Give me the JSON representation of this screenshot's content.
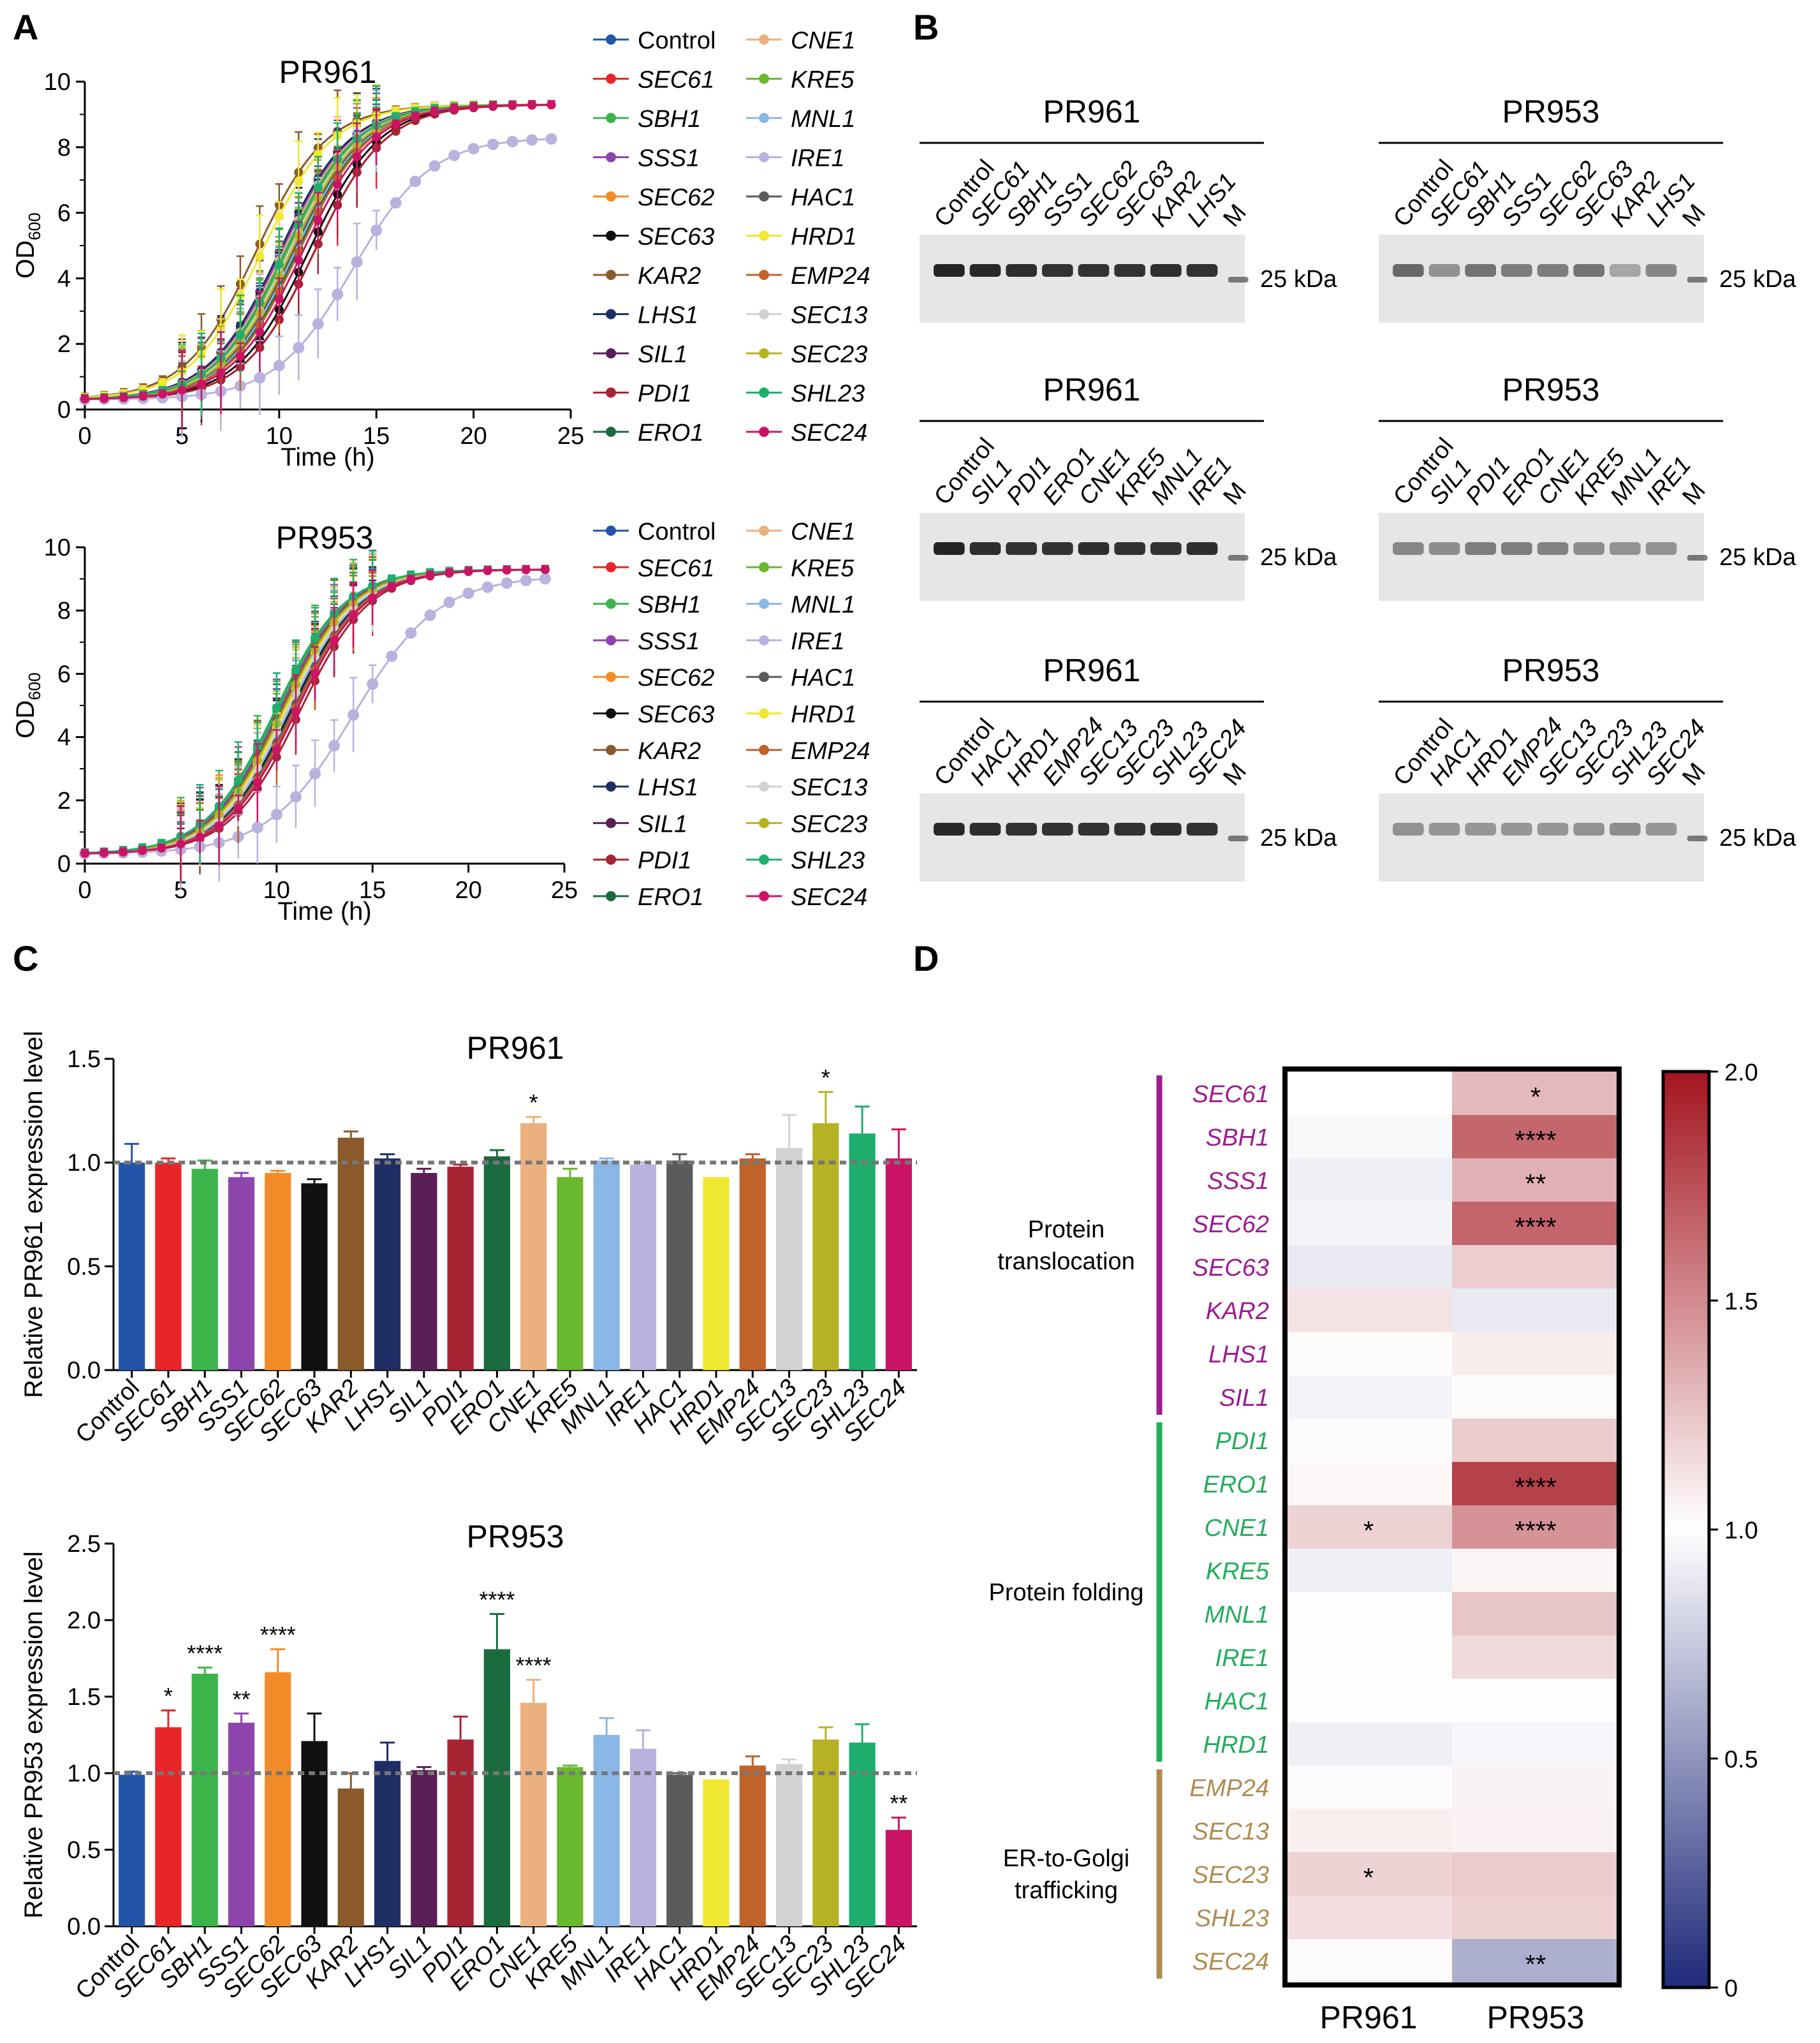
{
  "panel_labels": {
    "a": "A",
    "b": "B",
    "c": "C",
    "d": "D"
  },
  "gene_colors": {
    "Control": "#2255a8",
    "SEC61": "#e8262a",
    "SBH1": "#3cb44b",
    "SSS1": "#8e44ad",
    "SEC62": "#f28c28",
    "SEC63": "#111111",
    "KAR2": "#8b5a2b",
    "LHS1": "#1f2f66",
    "SIL1": "#5a1f57",
    "PDI1": "#a62434",
    "ERO1": "#1a6b3e",
    "CNE1": "#eab17e",
    "KRE5": "#6ab82d",
    "MNL1": "#8ab7e6",
    "IRE1": "#b9b2de",
    "HAC1": "#5b5b5b",
    "HRD1": "#f0e832",
    "EMP24": "#c0622a",
    "SEC13": "#d2d2d2",
    "SEC23": "#b7b224",
    "SHL23": "#1fae6c",
    "SEC24": "#cc1466"
  },
  "panel_b": {
    "blots": [
      {
        "strain": "PR961",
        "lanes": [
          "Control",
          "SEC61",
          "SBH1",
          "SSS1",
          "SEC62",
          "SEC63",
          "KAR2",
          "LHS1"
        ],
        "marker": "M",
        "size_label": "25 kDa",
        "intensities": [
          0.92,
          0.9,
          0.88,
          0.86,
          0.86,
          0.86,
          0.88,
          0.86
        ]
      },
      {
        "strain": "PR953",
        "lanes": [
          "Control",
          "SEC61",
          "SBH1",
          "SSS1",
          "SEC62",
          "SEC63",
          "KAR2",
          "LHS1"
        ],
        "marker": "M",
        "size_label": "25 kDa",
        "intensities": [
          0.6,
          0.4,
          0.55,
          0.5,
          0.5,
          0.55,
          0.3,
          0.45
        ]
      },
      {
        "strain": "PR961",
        "lanes": [
          "Control",
          "SIL1",
          "PDI1",
          "ERO1",
          "CNE1",
          "KRE5",
          "MNL1",
          "IRE1"
        ],
        "marker": "M",
        "size_label": "25 kDa",
        "intensities": [
          0.92,
          0.88,
          0.86,
          0.86,
          0.88,
          0.86,
          0.86,
          0.88
        ]
      },
      {
        "strain": "PR953",
        "lanes": [
          "Control",
          "SIL1",
          "PDI1",
          "ERO1",
          "CNE1",
          "KRE5",
          "MNL1",
          "IRE1"
        ],
        "marker": "M",
        "size_label": "25 kDa",
        "intensities": [
          0.45,
          0.42,
          0.5,
          0.5,
          0.48,
          0.42,
          0.4,
          0.4
        ]
      },
      {
        "strain": "PR961",
        "lanes": [
          "Control",
          "HAC1",
          "HRD1",
          "EMP24",
          "SEC13",
          "SEC23",
          "SHL23",
          "SEC24"
        ],
        "marker": "M",
        "size_label": "25 kDa",
        "intensities": [
          0.9,
          0.88,
          0.86,
          0.86,
          0.86,
          0.86,
          0.88,
          0.86
        ]
      },
      {
        "strain": "PR953",
        "lanes": [
          "Control",
          "HAC1",
          "HRD1",
          "EMP24",
          "SEC13",
          "SEC23",
          "SHL23",
          "SEC24"
        ],
        "marker": "M",
        "size_label": "25 kDa",
        "intensities": [
          0.4,
          0.38,
          0.38,
          0.38,
          0.38,
          0.4,
          0.42,
          0.38
        ]
      }
    ]
  },
  "chart_data": [
    {
      "id": "A-top",
      "type": "line",
      "title": "PR961",
      "xlabel": "Time (h)",
      "ylabel": "OD",
      "ylabel_sub": "600",
      "xlim": [
        0,
        25
      ],
      "ylim": [
        0,
        10
      ],
      "xticks": [
        0,
        5,
        10,
        15,
        20,
        25
      ],
      "yticks": [
        0,
        2,
        4,
        6,
        8,
        10
      ],
      "x": [
        0,
        1,
        2,
        3,
        4,
        5,
        6,
        7,
        8,
        9,
        10,
        11,
        12,
        13,
        14,
        15,
        16,
        17,
        18,
        19,
        20,
        21,
        22,
        23,
        24
      ],
      "series": [
        {
          "name": "Control",
          "k": 0.55,
          "t0": 10.4
        },
        {
          "name": "SEC61",
          "k": 0.55,
          "t0": 11.8
        },
        {
          "name": "SBH1",
          "k": 0.55,
          "t0": 10.4
        },
        {
          "name": "SSS1",
          "k": 0.55,
          "t0": 10.1
        },
        {
          "name": "SEC62",
          "k": 0.55,
          "t0": 10.6
        },
        {
          "name": "SEC63",
          "k": 0.55,
          "t0": 11.5
        },
        {
          "name": "KAR2",
          "k": 0.55,
          "t0": 8.8
        },
        {
          "name": "LHS1",
          "k": 0.55,
          "t0": 10.0
        },
        {
          "name": "SIL1",
          "k": 0.55,
          "t0": 10.6
        },
        {
          "name": "PDI1",
          "k": 0.55,
          "t0": 11.8
        },
        {
          "name": "ERO1",
          "k": 0.55,
          "t0": 10.9
        },
        {
          "name": "CNE1",
          "k": 0.55,
          "t0": 10.2
        },
        {
          "name": "KRE5",
          "k": 0.55,
          "t0": 10.4
        },
        {
          "name": "MNL1",
          "k": 0.55,
          "t0": 10.8
        },
        {
          "name": "IRE1",
          "k": 0.5,
          "t0": 13.8,
          "max": 8.3
        },
        {
          "name": "HAC1",
          "k": 0.55,
          "t0": 10.7
        },
        {
          "name": "HRD1",
          "k": 0.55,
          "t0": 9.1
        },
        {
          "name": "EMP24",
          "k": 0.55,
          "t0": 11.0
        },
        {
          "name": "SEC13",
          "k": 0.55,
          "t0": 10.5
        },
        {
          "name": "SEC23",
          "k": 0.55,
          "t0": 10.6
        },
        {
          "name": "SHL23",
          "k": 0.55,
          "t0": 10.3
        },
        {
          "name": "SEC24",
          "k": 0.55,
          "t0": 11.2
        }
      ]
    },
    {
      "id": "A-bottom",
      "type": "line",
      "title": "PR953",
      "xlabel": "Time (h)",
      "ylabel": "OD",
      "ylabel_sub": "600",
      "xlim": [
        0,
        25
      ],
      "ylim": [
        0,
        10
      ],
      "xticks": [
        0,
        5,
        10,
        15,
        20,
        25
      ],
      "yticks": [
        0,
        2,
        4,
        6,
        8,
        10
      ],
      "x": [
        0,
        1,
        2,
        3,
        4,
        5,
        6,
        7,
        8,
        9,
        10,
        11,
        12,
        13,
        14,
        15,
        16,
        17,
        18,
        19,
        20,
        21,
        22,
        23,
        24
      ],
      "series": [
        {
          "name": "Control",
          "k": 0.55,
          "t0": 10.4
        },
        {
          "name": "SEC61",
          "k": 0.55,
          "t0": 10.9
        },
        {
          "name": "SBH1",
          "k": 0.55,
          "t0": 10.0
        },
        {
          "name": "SSS1",
          "k": 0.55,
          "t0": 10.1
        },
        {
          "name": "SEC62",
          "k": 0.55,
          "t0": 10.3
        },
        {
          "name": "SEC63",
          "k": 0.55,
          "t0": 10.7
        },
        {
          "name": "KAR2",
          "k": 0.55,
          "t0": 10.2
        },
        {
          "name": "LHS1",
          "k": 0.55,
          "t0": 10.6
        },
        {
          "name": "SIL1",
          "k": 0.55,
          "t0": 10.5
        },
        {
          "name": "PDI1",
          "k": 0.55,
          "t0": 11.2
        },
        {
          "name": "ERO1",
          "k": 0.55,
          "t0": 10.3
        },
        {
          "name": "CNE1",
          "k": 0.55,
          "t0": 10.4
        },
        {
          "name": "KRE5",
          "k": 0.55,
          "t0": 10.5
        },
        {
          "name": "MNL1",
          "k": 0.55,
          "t0": 10.6
        },
        {
          "name": "IRE1",
          "k": 0.45,
          "t0": 14.0,
          "max": 9.1
        },
        {
          "name": "HAC1",
          "k": 0.55,
          "t0": 10.8
        },
        {
          "name": "HRD1",
          "k": 0.55,
          "t0": 10.4
        },
        {
          "name": "EMP24",
          "k": 0.55,
          "t0": 10.9
        },
        {
          "name": "SEC13",
          "k": 0.55,
          "t0": 10.5
        },
        {
          "name": "SEC23",
          "k": 0.55,
          "t0": 10.3
        },
        {
          "name": "SHL23",
          "k": 0.55,
          "t0": 9.9
        },
        {
          "name": "SEC24",
          "k": 0.55,
          "t0": 11.0
        }
      ]
    },
    {
      "id": "C-top",
      "type": "bar",
      "title": "PR961",
      "ylabel": "Relative PR961 expression level",
      "ylim": [
        0,
        1.5
      ],
      "yticks": [
        0.0,
        0.5,
        1.0,
        1.5
      ],
      "reference": 1.0,
      "categories": [
        "Control",
        "SEC61",
        "SBH1",
        "SSS1",
        "SEC62",
        "SEC63",
        "KAR2",
        "LHS1",
        "SIL1",
        "PDI1",
        "ERO1",
        "CNE1",
        "KRE5",
        "MNL1",
        "IRE1",
        "HAC1",
        "HRD1",
        "EMP24",
        "SEC13",
        "SEC23",
        "SHL23",
        "SEC24"
      ],
      "values": [
        1.0,
        1.0,
        0.97,
        0.93,
        0.95,
        0.9,
        1.12,
        1.02,
        0.95,
        0.98,
        1.03,
        1.19,
        0.93,
        1.01,
        0.99,
        1.01,
        0.93,
        1.02,
        1.07,
        1.19,
        1.14,
        1.02
      ],
      "errors": [
        0.09,
        0.02,
        0.04,
        0.02,
        0.01,
        0.02,
        0.03,
        0.02,
        0.02,
        0.01,
        0.03,
        0.03,
        0.04,
        0.01,
        0.01,
        0.03,
        0.0,
        0.02,
        0.16,
        0.15,
        0.13,
        0.14
      ],
      "significance": [
        "",
        "",
        "",
        "",
        "",
        "",
        "",
        "",
        "",
        "",
        "",
        "*",
        "",
        "",
        "",
        "",
        "",
        "",
        "",
        "*",
        "",
        ""
      ]
    },
    {
      "id": "C-bottom",
      "type": "bar",
      "title": "PR953",
      "ylabel": "Relative PR953 expression level",
      "ylim": [
        0,
        2.5
      ],
      "yticks": [
        0.0,
        0.5,
        1.0,
        1.5,
        2.0,
        2.5
      ],
      "reference": 1.0,
      "categories": [
        "Control",
        "SEC61",
        "SBH1",
        "SSS1",
        "SEC62",
        "SEC63",
        "KAR2",
        "LHS1",
        "SIL1",
        "PDI1",
        "ERO1",
        "CNE1",
        "KRE5",
        "MNL1",
        "IRE1",
        "HAC1",
        "HRD1",
        "EMP24",
        "SEC13",
        "SEC23",
        "SHL23",
        "SEC24"
      ],
      "values": [
        0.99,
        1.3,
        1.65,
        1.33,
        1.66,
        1.21,
        0.9,
        1.08,
        1.02,
        1.22,
        1.81,
        1.46,
        1.04,
        1.25,
        1.16,
        0.99,
        0.96,
        1.05,
        1.06,
        1.22,
        1.2,
        0.63
      ],
      "errors": [
        0.02,
        0.11,
        0.04,
        0.06,
        0.15,
        0.18,
        0.1,
        0.12,
        0.02,
        0.15,
        0.23,
        0.15,
        0.01,
        0.11,
        0.12,
        0.01,
        0.0,
        0.06,
        0.03,
        0.08,
        0.12,
        0.08
      ],
      "significance": [
        "",
        "*",
        "****",
        "**",
        "****",
        "",
        "",
        "",
        "",
        "",
        "****",
        "****",
        "",
        "",
        "",
        "",
        "",
        "",
        "",
        "",
        "",
        "**"
      ]
    },
    {
      "id": "D",
      "type": "heatmap",
      "columns": [
        "PR961",
        "PR953"
      ],
      "rows": [
        "SEC61",
        "SBH1",
        "SSS1",
        "SEC62",
        "SEC63",
        "KAR2",
        "LHS1",
        "SIL1",
        "PDI1",
        "ERO1",
        "CNE1",
        "KRE5",
        "MNL1",
        "IRE1",
        "HAC1",
        "HRD1",
        "EMP24",
        "SEC13",
        "SEC23",
        "SHL23",
        "SEC24"
      ],
      "row_colors": [
        "#9c1b8f",
        "#9c1b8f",
        "#9c1b8f",
        "#9c1b8f",
        "#9c1b8f",
        "#9c1b8f",
        "#9c1b8f",
        "#9c1b8f",
        "#22ad5b",
        "#22ad5b",
        "#22ad5b",
        "#22ad5b",
        "#22ad5b",
        "#22ad5b",
        "#22ad5b",
        "#22ad5b",
        "#b08a50",
        "#b08a50",
        "#b08a50",
        "#b08a50",
        "#b08a50"
      ],
      "values": [
        [
          1.0,
          1.3
        ],
        [
          0.97,
          1.65
        ],
        [
          0.93,
          1.33
        ],
        [
          0.95,
          1.66
        ],
        [
          0.9,
          1.21
        ],
        [
          1.12,
          0.9
        ],
        [
          1.02,
          1.08
        ],
        [
          0.95,
          1.02
        ],
        [
          0.98,
          1.22
        ],
        [
          1.03,
          1.81
        ],
        [
          1.19,
          1.46
        ],
        [
          0.93,
          1.04
        ],
        [
          1.01,
          1.25
        ],
        [
          0.99,
          1.16
        ],
        [
          1.01,
          0.99
        ],
        [
          0.93,
          0.96
        ],
        [
          1.02,
          1.05
        ],
        [
          1.07,
          1.06
        ],
        [
          1.19,
          1.22
        ],
        [
          1.14,
          1.2
        ],
        [
          1.02,
          0.63
        ]
      ],
      "significance": [
        [
          "",
          "*"
        ],
        [
          "",
          "****"
        ],
        [
          "",
          "**"
        ],
        [
          "",
          "****"
        ],
        [
          "",
          ""
        ],
        [
          "",
          ""
        ],
        [
          "",
          ""
        ],
        [
          "",
          ""
        ],
        [
          "",
          ""
        ],
        [
          "",
          "****"
        ],
        [
          "*",
          "****"
        ],
        [
          "",
          ""
        ],
        [
          "",
          ""
        ],
        [
          "",
          ""
        ],
        [
          "",
          ""
        ],
        [
          "",
          ""
        ],
        [
          "",
          ""
        ],
        [
          "",
          ""
        ],
        [
          "*",
          ""
        ],
        [
          "",
          ""
        ],
        [
          "",
          "**"
        ]
      ],
      "groups": [
        {
          "label": "Protein translocation",
          "lines": [
            "Protein",
            "translocation"
          ],
          "start": 0,
          "end": 7,
          "color": "#9c1b8f"
        },
        {
          "label": "Protein folding",
          "lines": [
            "Protein folding"
          ],
          "start": 8,
          "end": 15,
          "color": "#22ad5b"
        },
        {
          "label": "ER-to-Golgi trafficking",
          "lines": [
            "ER-to-Golgi",
            "trafficking"
          ],
          "start": 16,
          "end": 20,
          "color": "#b08a50"
        }
      ],
      "colorbar": {
        "min": 0,
        "max": 2.0,
        "ticks": [
          0,
          0.5,
          1.0,
          1.5,
          2.0
        ],
        "tick_labels": [
          "0",
          "0.5",
          "1.0",
          "1.5",
          "2.0"
        ],
        "low": "#1f2a7a",
        "mid": "#ffffff",
        "high": "#a4151f"
      }
    }
  ]
}
